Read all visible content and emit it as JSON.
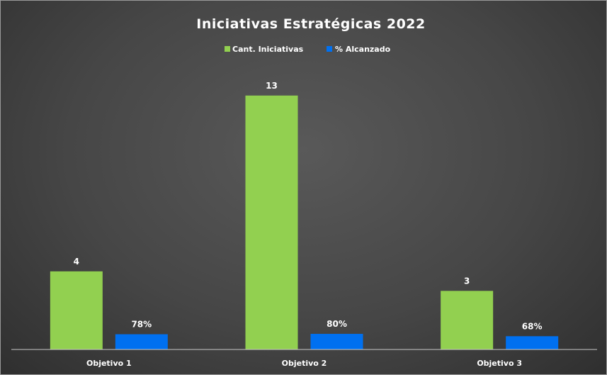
{
  "chart_data": {
    "type": "bar",
    "title": "Iniciativas Estratégicas 2022",
    "categories": [
      "Objetivo 1",
      "Objetivo 2",
      "Objetivo 3"
    ],
    "series": [
      {
        "name": "Cant. Iniciativas",
        "color": "#92d050",
        "values": [
          4,
          13,
          3
        ],
        "labels": [
          "4",
          "13",
          "3"
        ]
      },
      {
        "name": "% Alcanzado",
        "color": "#0070f0",
        "values": [
          0.78,
          0.8,
          0.68
        ],
        "labels": [
          "78%",
          "80%",
          "68%"
        ]
      }
    ],
    "ylim": [
      0,
      13.5
    ],
    "grid": false,
    "legend": "top",
    "xlabel": "",
    "ylabel": ""
  }
}
